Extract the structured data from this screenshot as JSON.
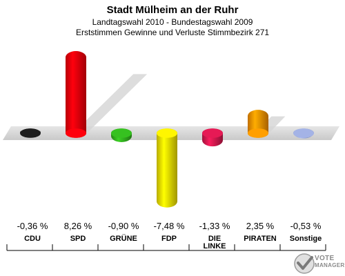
{
  "title": "Stadt Mülheim an der Ruhr",
  "subtitle1": "Landtagswahl 2010 - Bundestagswahl 2009",
  "subtitle2": "Erststimmen Gewinne und Verluste Stimmbezirk 271",
  "logo": {
    "line1": "VOTE",
    "line2": "MANAGER"
  },
  "chart_data": {
    "type": "bar",
    "title": "Stadt Mülheim an der Ruhr",
    "subtitle": "Landtagswahl 2010 - Bundestagswahl 2009 / Erststimmen Gewinne und Verluste Stimmbezirk 271",
    "categories": [
      "CDU",
      "SPD",
      "GRÜNE",
      "FDP",
      "DIE LINKE",
      "PIRATEN",
      "Sonstige"
    ],
    "values": [
      -0.36,
      8.26,
      -0.9,
      -7.48,
      -1.33,
      2.35,
      -0.53
    ],
    "value_labels": [
      "-0,36 %",
      "8,26 %",
      "-0,90 %",
      "-7,48 %",
      "-1,33 %",
      "2,35 %",
      "-0,53 %"
    ],
    "colors": [
      "#1a1a1a",
      "#e8000a",
      "#2fa81c",
      "#e6d600",
      "#c8174a",
      "#f08a00",
      "#8f9cc8"
    ],
    "ylim": [
      -8,
      9
    ]
  }
}
